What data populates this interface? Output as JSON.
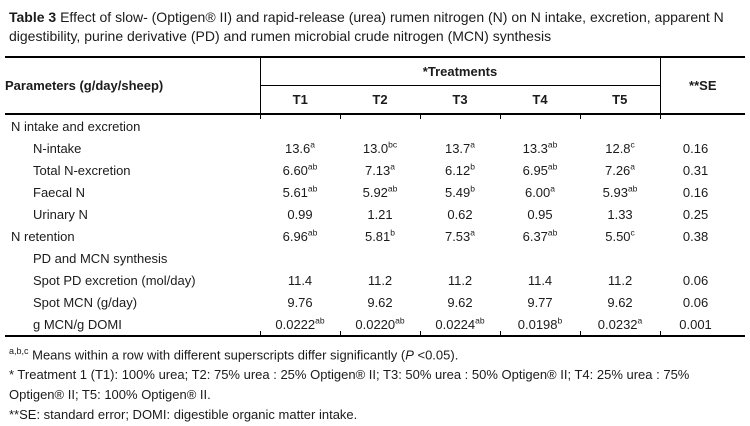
{
  "title": {
    "label": "Table 3",
    "text": "Effect of slow- (Optigen® II) and rapid-release (urea) rumen nitrogen (N) on N intake, excretion, apparent N digestibility, purine derivative (PD) and rumen microbial crude nitrogen (MCN) synthesis"
  },
  "table": {
    "columns": {
      "parameters": "Parameters (g/day/sheep)",
      "treatments_group": "*Treatments",
      "treatments": [
        "T1",
        "T2",
        "T3",
        "T4",
        "T5"
      ],
      "se": "**SE"
    },
    "rows": [
      {
        "label": "N intake and excretion",
        "indent": false,
        "values": [
          "",
          "",
          "",
          "",
          ""
        ],
        "sups": [
          "",
          "",
          "",
          "",
          ""
        ],
        "se": ""
      },
      {
        "label": "N-intake",
        "indent": true,
        "values": [
          "13.6",
          "13.0",
          "13.7",
          "13.3",
          "12.8"
        ],
        "sups": [
          "a",
          "bc",
          "a",
          "ab",
          "c"
        ],
        "se": "0.16"
      },
      {
        "label": "Total N-excretion",
        "indent": true,
        "values": [
          "6.60",
          "7.13",
          "6.12",
          "6.95",
          "7.26"
        ],
        "sups": [
          "ab",
          "a",
          "b",
          "ab",
          "a"
        ],
        "se": "0.31"
      },
      {
        "label": "Faecal N",
        "indent": true,
        "values": [
          "5.61",
          "5.92",
          "5.49",
          "6.00",
          "5.93"
        ],
        "sups": [
          "ab",
          "ab",
          "b",
          "a",
          "ab"
        ],
        "se": "0.16"
      },
      {
        "label": "Urinary N",
        "indent": true,
        "values": [
          "0.99",
          "1.21",
          "0.62",
          "0.95",
          "1.33"
        ],
        "sups": [
          "",
          "",
          "",
          "",
          ""
        ],
        "se": "0.25"
      },
      {
        "label": "N retention",
        "indent": false,
        "values": [
          "6.96",
          "5.81",
          "7.53",
          "6.37",
          "5.50"
        ],
        "sups": [
          "ab",
          "b",
          "a",
          "ab",
          "c"
        ],
        "se": "0.38"
      },
      {
        "label": "PD and MCN synthesis",
        "indent": true,
        "values": [
          "",
          "",
          "",
          "",
          ""
        ],
        "sups": [
          "",
          "",
          "",
          "",
          ""
        ],
        "se": ""
      },
      {
        "label": "Spot PD excretion (mol/day)",
        "indent": true,
        "values": [
          "11.4",
          "11.2",
          "11.2",
          "11.4",
          "11.2"
        ],
        "sups": [
          "",
          "",
          "",
          "",
          ""
        ],
        "se": "0.06"
      },
      {
        "label": "Spot MCN (g/day)",
        "indent": true,
        "values": [
          "9.76",
          "9.62",
          "9.62",
          "9.77",
          "9.62"
        ],
        "sups": [
          "",
          "",
          "",
          "",
          ""
        ],
        "se": "0.06"
      },
      {
        "label": "g MCN/g DOMI",
        "indent": true,
        "values": [
          "0.0222",
          "0.0220",
          "0.0224",
          "0.0198",
          "0.0232"
        ],
        "sups": [
          "ab",
          "ab",
          "ab",
          "b",
          "a"
        ],
        "se": "0.001"
      }
    ]
  },
  "footnotes": {
    "significance": {
      "sup": "a,b,c",
      "pre": " Means within a row with different superscripts differ significantly (",
      "italic": "P",
      "post": " <0.05)."
    },
    "treatments": "* Treatment 1 (T1): 100% urea; T2: 75% urea : 25% Optigen® II; T3: 50% urea : 50% Optigen® II; T4: 25% urea : 75% Optigen® II; T5: 100% Optigen® II.",
    "abbreviations": "**SE: standard error; DOMI: digestible organic matter intake."
  }
}
